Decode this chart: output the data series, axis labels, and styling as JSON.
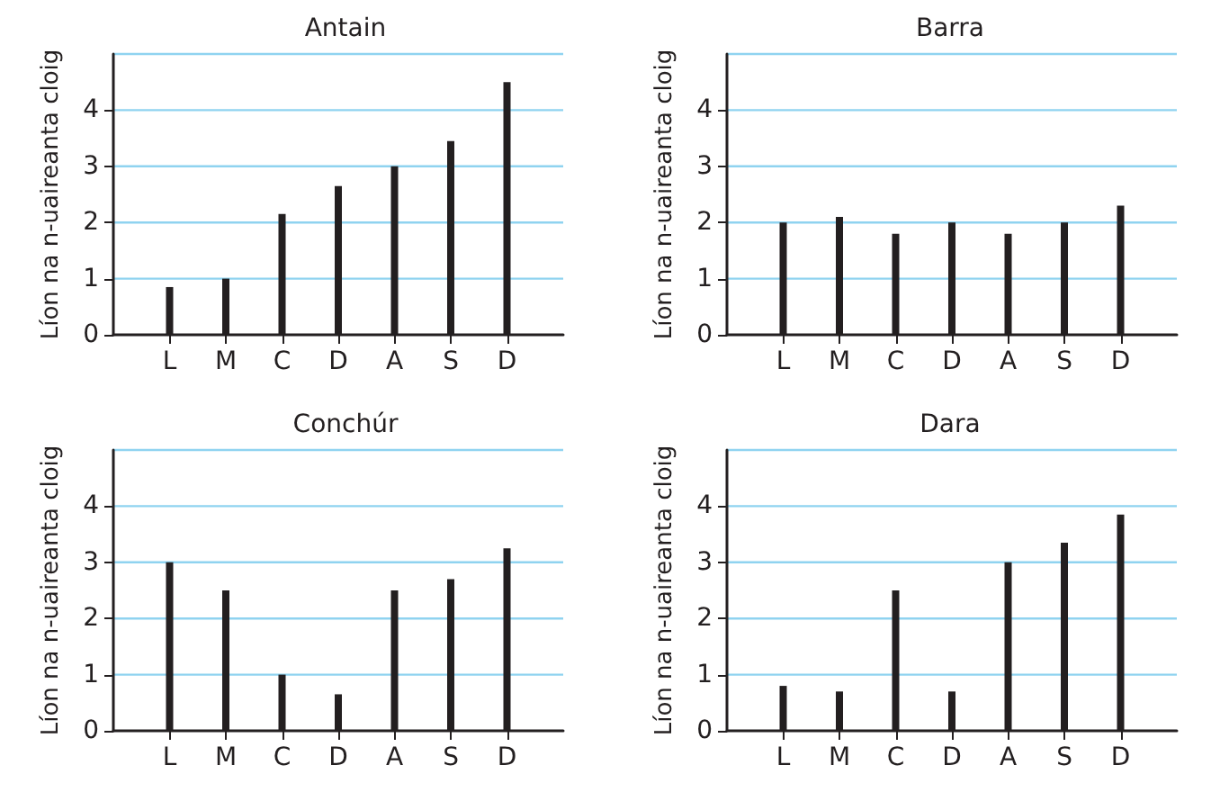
{
  "chart_data": [
    {
      "type": "bar",
      "title": "Antain",
      "ylabel": "Líon na n-uaireanta cloig",
      "categories": [
        "L",
        "M",
        "C",
        "D",
        "A",
        "S",
        "D"
      ],
      "values": [
        0.85,
        1,
        2.15,
        2.65,
        3,
        3.45,
        4.5
      ],
      "color": "#231f20",
      "ylim": [
        0,
        5
      ],
      "yticks": [
        0,
        1,
        2,
        3,
        4
      ],
      "grid": "y"
    },
    {
      "type": "bar",
      "title": "Barra",
      "ylabel": "Líon na n-uaireanta cloig",
      "categories": [
        "L",
        "M",
        "C",
        "D",
        "A",
        "S",
        "D"
      ],
      "values": [
        2,
        2.1,
        1.8,
        2,
        1.8,
        2,
        2.3
      ],
      "color": "#231f20",
      "ylim": [
        0,
        5
      ],
      "yticks": [
        0,
        1,
        2,
        3,
        4
      ],
      "grid": "y"
    },
    {
      "type": "bar",
      "title": "Conchúr",
      "ylabel": "Líon na n-uaireanta cloig",
      "categories": [
        "L",
        "M",
        "C",
        "D",
        "A",
        "S",
        "D"
      ],
      "values": [
        3,
        2.5,
        1,
        0.65,
        2.5,
        2.7,
        3.25
      ],
      "color": "#231f20",
      "ylim": [
        0,
        5
      ],
      "yticks": [
        0,
        1,
        2,
        3,
        4
      ],
      "grid": "y"
    },
    {
      "type": "bar",
      "title": "Dara",
      "ylabel": "Líon na n-uaireanta cloig",
      "categories": [
        "L",
        "M",
        "C",
        "D",
        "A",
        "S",
        "D"
      ],
      "values": [
        0.8,
        0.7,
        2.5,
        0.7,
        3,
        3.35,
        3.85
      ],
      "color": "#231f20",
      "ylim": [
        0,
        5
      ],
      "yticks": [
        0,
        1,
        2,
        3,
        4
      ],
      "grid": "y"
    }
  ]
}
